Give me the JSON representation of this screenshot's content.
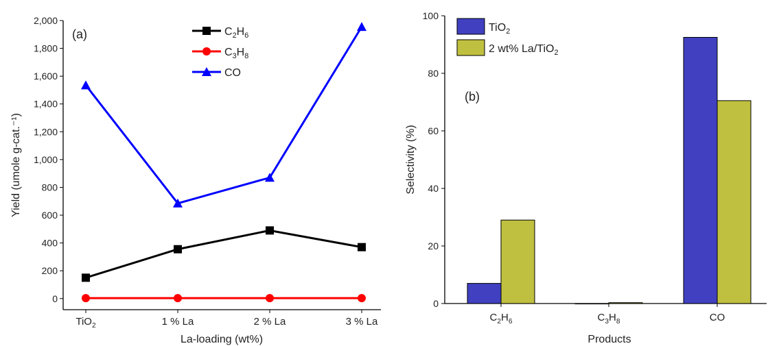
{
  "chart_data": [
    {
      "type": "line",
      "panel_label": "(a)",
      "xlabel": "La-loading  (wt%)",
      "ylabel": "Yield (umole g-cat.⁻¹)",
      "categories": [
        {
          "base": "TiO",
          "sub": "2"
        },
        {
          "base": "1 % La",
          "sub": ""
        },
        {
          "base": "2 % La",
          "sub": ""
        },
        {
          "base": "3 % La",
          "sub": ""
        }
      ],
      "ylim": [
        -80,
        2000
      ],
      "yticks": [
        0,
        200,
        400,
        600,
        800,
        1000,
        1200,
        1400,
        1600,
        1800,
        2000
      ],
      "ytick_labels": [
        "0",
        "200",
        "400",
        "600",
        "800",
        "1,000",
        "1,200",
        "1,400",
        "1,600",
        "1,800",
        "2,000"
      ],
      "legend_position": "top-center",
      "series": [
        {
          "name_parts": [
            {
              "t": "C"
            },
            {
              "t": "2",
              "sub": true
            },
            {
              "t": "H"
            },
            {
              "t": "6",
              "sub": true
            }
          ],
          "color": "#000000",
          "marker": "square",
          "values": [
            150,
            355,
            490,
            370
          ]
        },
        {
          "name_parts": [
            {
              "t": "C"
            },
            {
              "t": "3",
              "sub": true
            },
            {
              "t": "H"
            },
            {
              "t": "8",
              "sub": true
            }
          ],
          "color": "#ff0000",
          "marker": "circle",
          "values": [
            3,
            3,
            3,
            3
          ]
        },
        {
          "name_parts": [
            {
              "t": "CO"
            }
          ],
          "color": "#0000ff",
          "marker": "triangle",
          "values": [
            1535,
            685,
            870,
            1955
          ]
        }
      ]
    },
    {
      "type": "bar",
      "panel_label": "(b)",
      "xlabel": "Products",
      "ylabel": "Selectivity  (%)",
      "categories": [
        {
          "base": "C",
          "parts": [
            {
              "t": "C"
            },
            {
              "t": "2",
              "sub": true
            },
            {
              "t": "H"
            },
            {
              "t": "6",
              "sub": true
            }
          ]
        },
        {
          "base": "C",
          "parts": [
            {
              "t": "C"
            },
            {
              "t": "3",
              "sub": true
            },
            {
              "t": "H"
            },
            {
              "t": "8",
              "sub": true
            }
          ]
        },
        {
          "base": "CO",
          "parts": [
            {
              "t": "CO"
            }
          ]
        }
      ],
      "ylim": [
        0,
        100
      ],
      "yticks": [
        0,
        20,
        40,
        60,
        80,
        100
      ],
      "legend_position": "top-left",
      "series": [
        {
          "name_parts": [
            {
              "t": "TiO"
            },
            {
              "t": "2",
              "sub": true
            }
          ],
          "color": "#4040c0",
          "values": [
            7,
            0,
            92.5
          ]
        },
        {
          "name_parts": [
            {
              "t": "2 wt%  La/TiO"
            },
            {
              "t": "2",
              "sub": true
            }
          ],
          "color": "#c0c040",
          "values": [
            29,
            0.3,
            70.5
          ]
        }
      ]
    }
  ]
}
